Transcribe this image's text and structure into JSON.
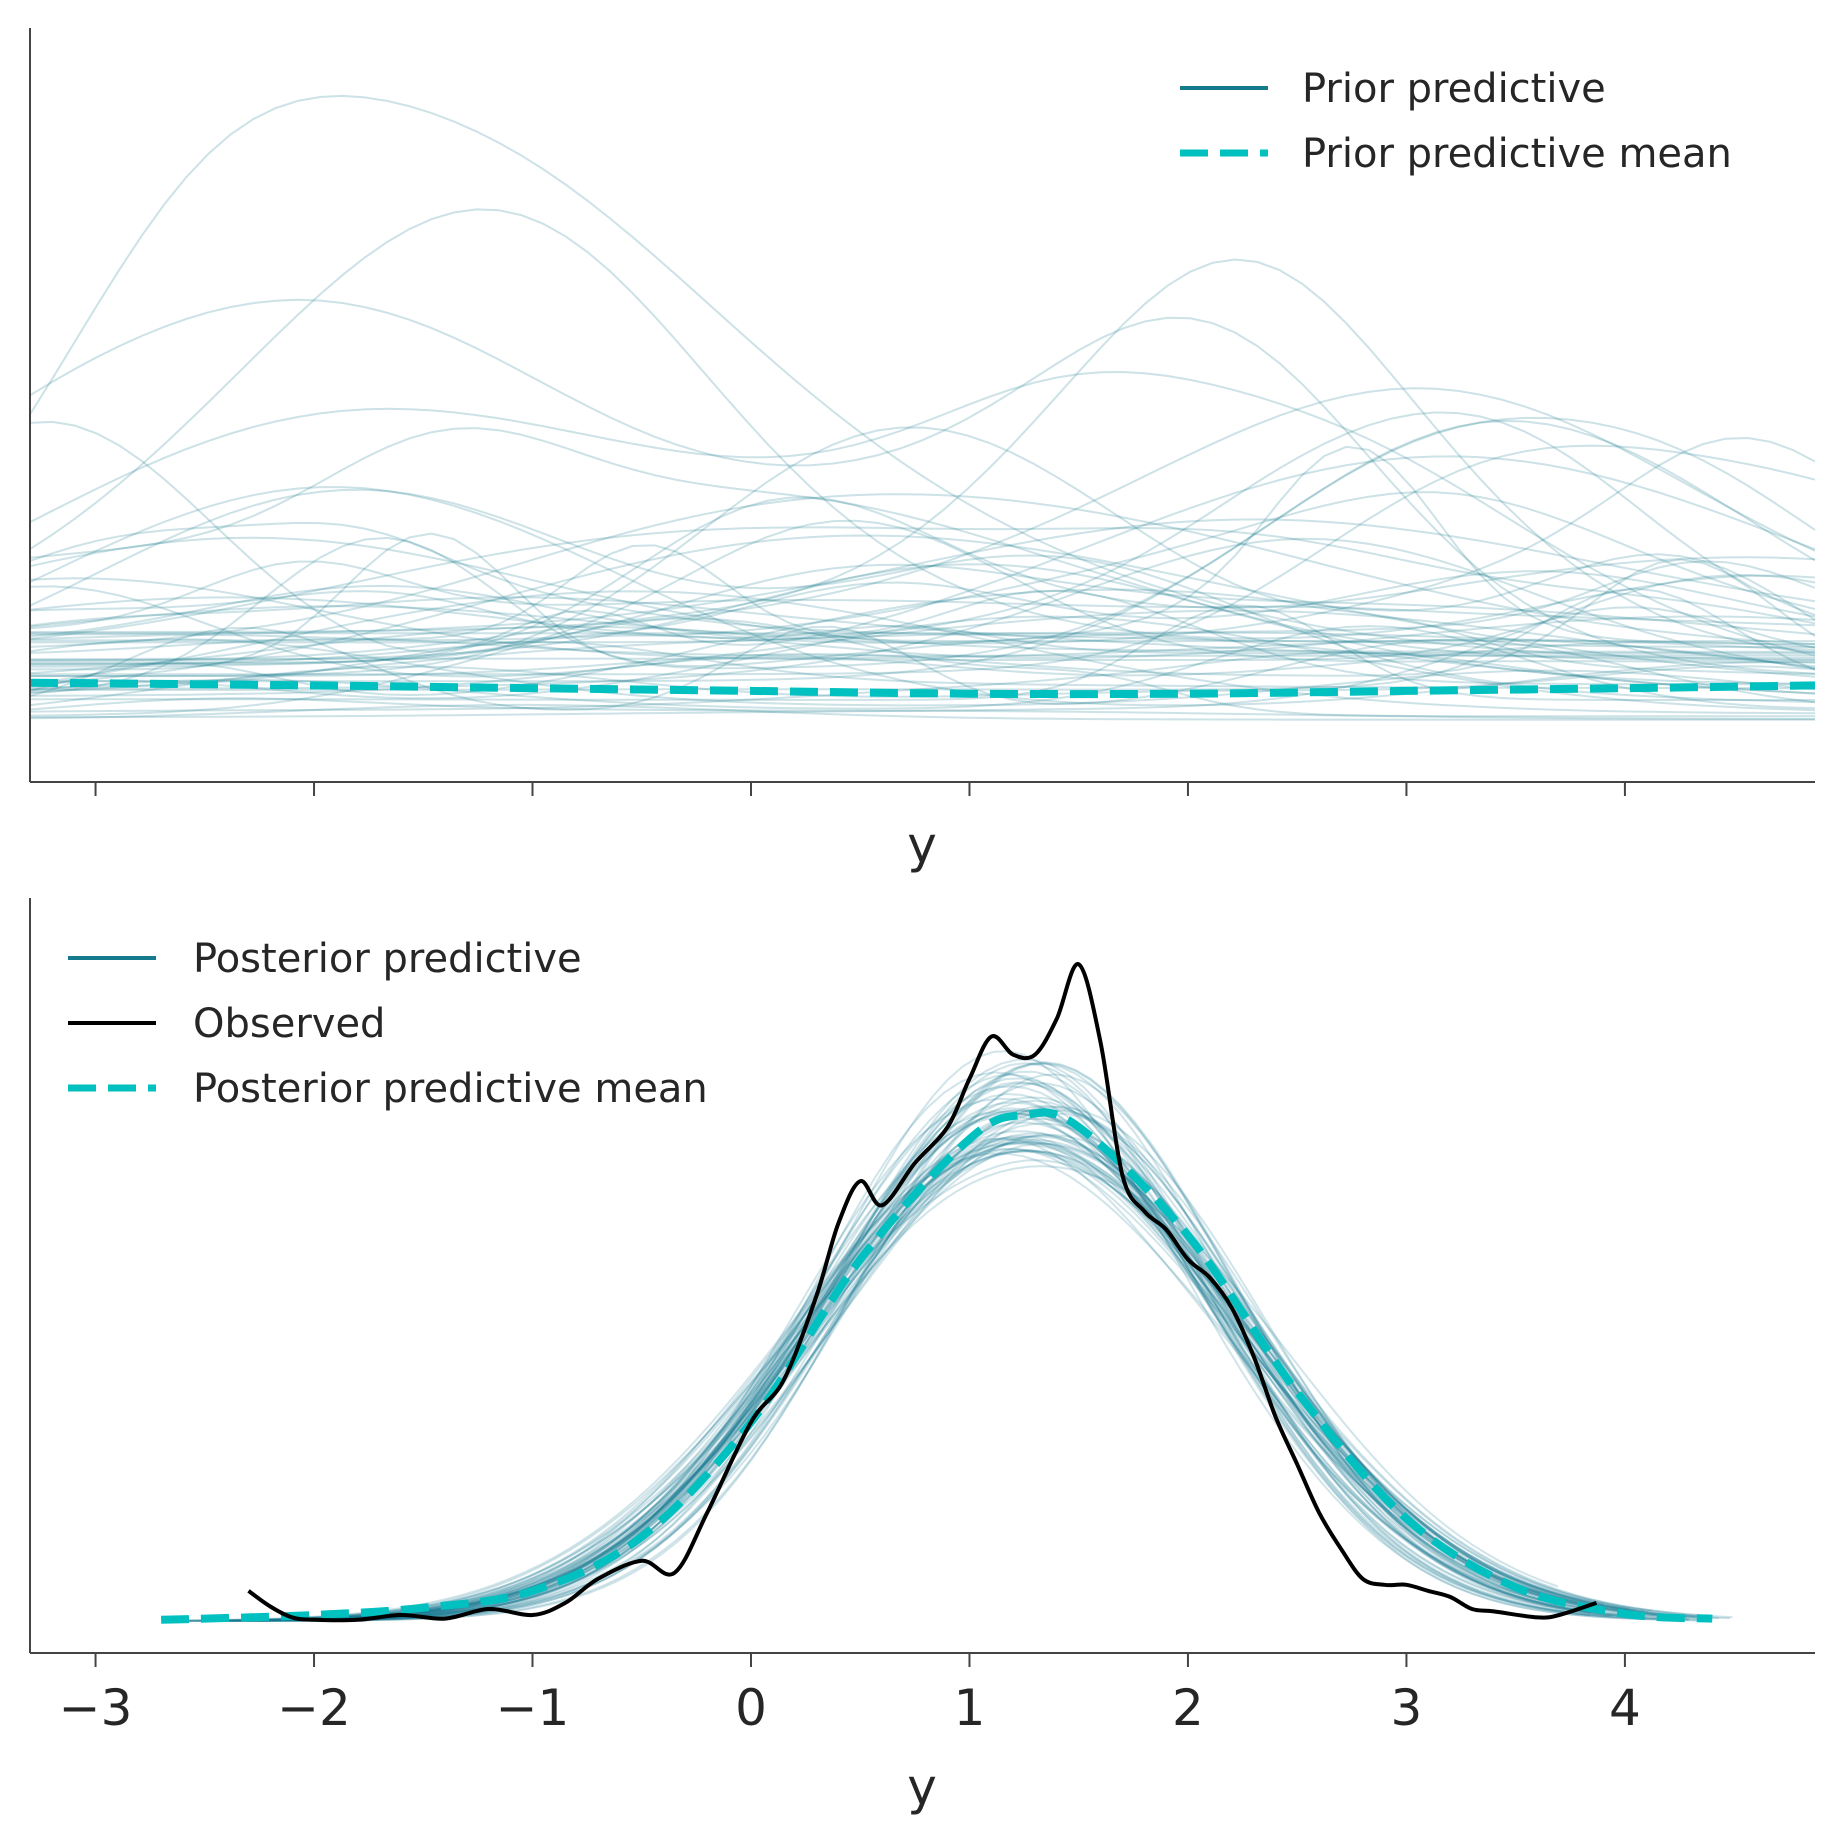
{
  "colors": {
    "draws": "#167a8f",
    "mean": "#00c0c0",
    "observed": "#000000",
    "axis": "#444444",
    "text": "#262626"
  },
  "chart_data": [
    {
      "type": "line",
      "xlabel": "y",
      "ylabel": "",
      "xlim": [
        -3.3,
        4.87
      ],
      "ylim": [
        0,
        0.265
      ],
      "show_tick_labels": false,
      "x_ticks": [
        -3,
        -2,
        -1,
        0,
        1,
        2,
        3,
        4
      ],
      "legend": {
        "placement": "top-right",
        "entries": [
          {
            "label": "Prior predictive",
            "style": "solid",
            "color": "#167a8f"
          },
          {
            "label": "Prior predictive mean",
            "style": "dashed",
            "color": "#00c0c0"
          }
        ]
      },
      "draws": {
        "count": 60,
        "x_range": [
          -3.3,
          4.87
        ],
        "density_range": [
          0.012,
          0.19
        ],
        "opacity": 0.22
      },
      "mean": {
        "x": [
          -3.3,
          -2,
          -1,
          0,
          1,
          2,
          3,
          4,
          4.87
        ],
        "values": [
          0.028,
          0.027,
          0.026,
          0.025,
          0.024,
          0.024,
          0.025,
          0.026,
          0.027
        ]
      }
    },
    {
      "type": "line",
      "xlabel": "y",
      "ylabel": "",
      "xlim": [
        -3.3,
        4.87
      ],
      "ylim": [
        0,
        0.6
      ],
      "show_tick_labels": true,
      "x_ticks": [
        -3,
        -2,
        -1,
        0,
        1,
        2,
        3,
        4
      ],
      "x_tick_labels": [
        "−3",
        "−2",
        "−1",
        "0",
        "1",
        "2",
        "3",
        "4"
      ],
      "legend": {
        "placement": "top-left",
        "entries": [
          {
            "label": "Posterior predictive",
            "style": "solid",
            "color": "#167a8f"
          },
          {
            "label": "Observed",
            "style": "solid",
            "color": "#000000"
          },
          {
            "label": "Posterior predictive mean",
            "style": "dashed",
            "color": "#00c0c0"
          }
        ]
      },
      "draws": {
        "count": 60,
        "center": 1.27,
        "sd": 0.95,
        "x_range": [
          -2.7,
          4.5
        ],
        "opacity": 0.2
      },
      "mean": {
        "x": [
          -2.7,
          -2.5,
          -2,
          -1.5,
          -1,
          -0.5,
          0,
          0.5,
          1,
          1.25,
          1.5,
          2,
          2.5,
          3,
          3.5,
          4,
          4.4
        ],
        "values": [
          0.001,
          0.002,
          0.005,
          0.011,
          0.025,
          0.07,
          0.165,
          0.3,
          0.4,
          0.42,
          0.41,
          0.32,
          0.19,
          0.085,
          0.028,
          0.006,
          0.002
        ]
      },
      "observed": {
        "x": [
          -2.3,
          -2.2,
          -2.1,
          -2.0,
          -1.8,
          -1.6,
          -1.4,
          -1.2,
          -1.0,
          -0.85,
          -0.7,
          -0.5,
          -0.35,
          -0.2,
          0.0,
          0.15,
          0.3,
          0.4,
          0.5,
          0.6,
          0.75,
          0.9,
          1.0,
          1.1,
          1.2,
          1.3,
          1.4,
          1.5,
          1.6,
          1.7,
          1.8,
          1.9,
          2.0,
          2.1,
          2.2,
          2.3,
          2.4,
          2.5,
          2.6,
          2.7,
          2.8,
          2.9,
          3.0,
          3.1,
          3.2,
          3.3,
          3.4,
          3.6,
          3.7,
          3.87
        ],
        "values": [
          0.025,
          0.012,
          0.003,
          0.001,
          0.001,
          0.005,
          0.002,
          0.01,
          0.005,
          0.015,
          0.035,
          0.05,
          0.04,
          0.09,
          0.165,
          0.2,
          0.27,
          0.33,
          0.365,
          0.345,
          0.38,
          0.41,
          0.45,
          0.485,
          0.47,
          0.47,
          0.5,
          0.545,
          0.48,
          0.37,
          0.34,
          0.325,
          0.3,
          0.285,
          0.26,
          0.22,
          0.17,
          0.13,
          0.09,
          0.06,
          0.035,
          0.03,
          0.03,
          0.025,
          0.02,
          0.01,
          0.008,
          0.003,
          0.005,
          0.015
        ]
      }
    }
  ]
}
